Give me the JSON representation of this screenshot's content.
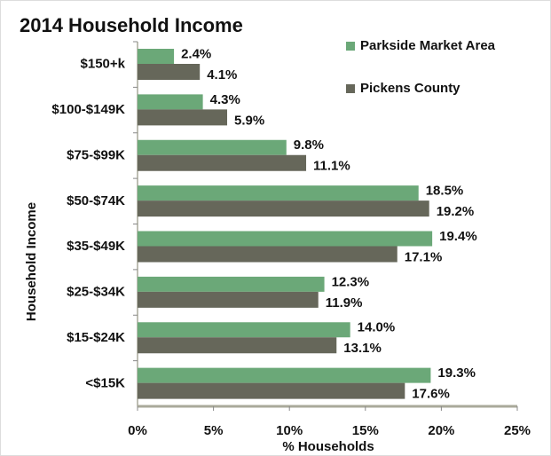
{
  "chart_data": {
    "type": "hbar",
    "title": "2014 Household Income",
    "xlabel": "% Households",
    "ylabel": "Household Income",
    "categories": [
      "$150+k",
      "$100-$149K",
      "$75-$99K",
      "$50-$74K",
      "$35-$49K",
      "$25-$34K",
      "$15-$24K",
      "<$15K"
    ],
    "series": [
      {
        "name": "Parkside Market Area",
        "color": "#6ba878",
        "values": [
          2.4,
          4.3,
          9.8,
          18.5,
          19.4,
          12.3,
          14.0,
          19.3
        ],
        "value_labels": [
          "2.4%",
          "4.3%",
          "9.8%",
          "18.5%",
          "19.4%",
          "12.3%",
          "14.0%",
          "19.3%"
        ]
      },
      {
        "name": "Pickens County",
        "color": "#66675a",
        "values": [
          4.1,
          5.9,
          11.1,
          19.2,
          17.1,
          11.9,
          13.1,
          17.6
        ],
        "value_labels": [
          "4.1%",
          "5.9%",
          "11.1%",
          "19.2%",
          "17.1%",
          "11.9%",
          "13.1%",
          "17.6%"
        ]
      }
    ],
    "xlim": [
      0,
      25
    ],
    "xticks": [
      {
        "value": 0,
        "label": "0%"
      },
      {
        "value": 5,
        "label": "5%"
      },
      {
        "value": 10,
        "label": "10%"
      },
      {
        "value": 15,
        "label": "15%"
      },
      {
        "value": 20,
        "label": "20%"
      },
      {
        "value": 25,
        "label": "25%"
      }
    ],
    "legend": "top-right"
  }
}
